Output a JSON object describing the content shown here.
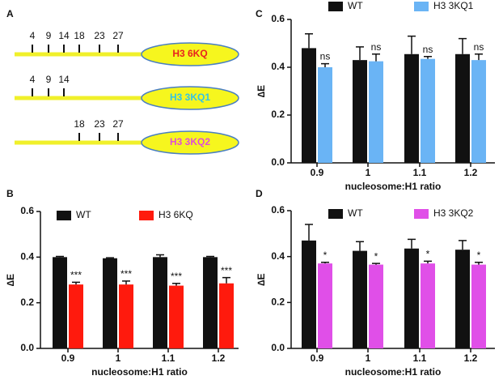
{
  "diagram": {
    "panel": "A",
    "constructs": [
      {
        "label": "H3 6KQ",
        "label_color": "#e8231f",
        "sites": [
          "4",
          "9",
          "14",
          "18",
          "23",
          "27"
        ]
      },
      {
        "label": "H3 3KQ1",
        "label_color": "#33c3e6",
        "sites": [
          "4",
          "9",
          "14"
        ]
      },
      {
        "label": "H3 3KQ2",
        "label_color": "#e04fd6",
        "sites": [
          "18",
          "23",
          "27"
        ]
      }
    ]
  },
  "chart_data": [
    {
      "panel": "B",
      "type": "bar",
      "categories": [
        "0.9",
        "1",
        "1.1",
        "1.2"
      ],
      "series": [
        {
          "name": "WT",
          "color": "#111111",
          "values": [
            0.4,
            0.395,
            0.4,
            0.4
          ],
          "errors": [
            0.003,
            0.002,
            0.01,
            0.003
          ]
        },
        {
          "name": "H3 6KQ",
          "color": "#ff1a0d",
          "values": [
            0.28,
            0.28,
            0.275,
            0.285
          ],
          "errors": [
            0.01,
            0.015,
            0.01,
            0.025
          ],
          "annotations": [
            "***",
            "***",
            "***",
            "***"
          ]
        }
      ],
      "ylim": [
        0,
        0.6
      ],
      "yticks": [
        {
          "value": 0,
          "label": "0.0"
        },
        0.2,
        0.4,
        0.6
      ],
      "ylabel": "∆E",
      "xlabel": "nucleosome:H1 ratio"
    },
    {
      "panel": "C",
      "type": "bar",
      "categories": [
        "0.9",
        "1",
        "1.1",
        "1.2"
      ],
      "series": [
        {
          "name": "WT",
          "color": "#111111",
          "values": [
            0.48,
            0.43,
            0.455,
            0.455
          ],
          "errors": [
            0.06,
            0.055,
            0.075,
            0.065
          ]
        },
        {
          "name": "H3 3KQ1",
          "color": "#6ab4f5",
          "values": [
            0.4,
            0.425,
            0.435,
            0.43
          ],
          "errors": [
            0.015,
            0.03,
            0.01,
            0.025
          ],
          "annotations": [
            "ns",
            "ns",
            "ns",
            "ns"
          ]
        }
      ],
      "ylim": [
        0,
        0.6
      ],
      "yticks": [
        {
          "value": 0,
          "label": "0.0"
        },
        0.2,
        0.4,
        0.6
      ],
      "ylabel": "∆E",
      "xlabel": "nucleosome:H1 ratio"
    },
    {
      "panel": "D",
      "type": "bar",
      "categories": [
        "0.9",
        "1",
        "1.1",
        "1.2"
      ],
      "series": [
        {
          "name": "WT",
          "color": "#111111",
          "values": [
            0.47,
            0.425,
            0.435,
            0.43
          ],
          "errors": [
            0.07,
            0.04,
            0.04,
            0.04
          ]
        },
        {
          "name": "H3 3KQ2",
          "color": "#e04fe8",
          "values": [
            0.37,
            0.365,
            0.37,
            0.365
          ],
          "errors": [
            0.005,
            0.005,
            0.01,
            0.01
          ],
          "annotations": [
            "*",
            "*",
            "*",
            "*"
          ]
        }
      ],
      "ylim": [
        0,
        0.6
      ],
      "yticks": [
        {
          "value": 0,
          "label": "0.0"
        },
        0.2,
        0.4,
        0.6
      ],
      "ylabel": "∆E",
      "xlabel": "nucleosome:H1 ratio"
    }
  ]
}
